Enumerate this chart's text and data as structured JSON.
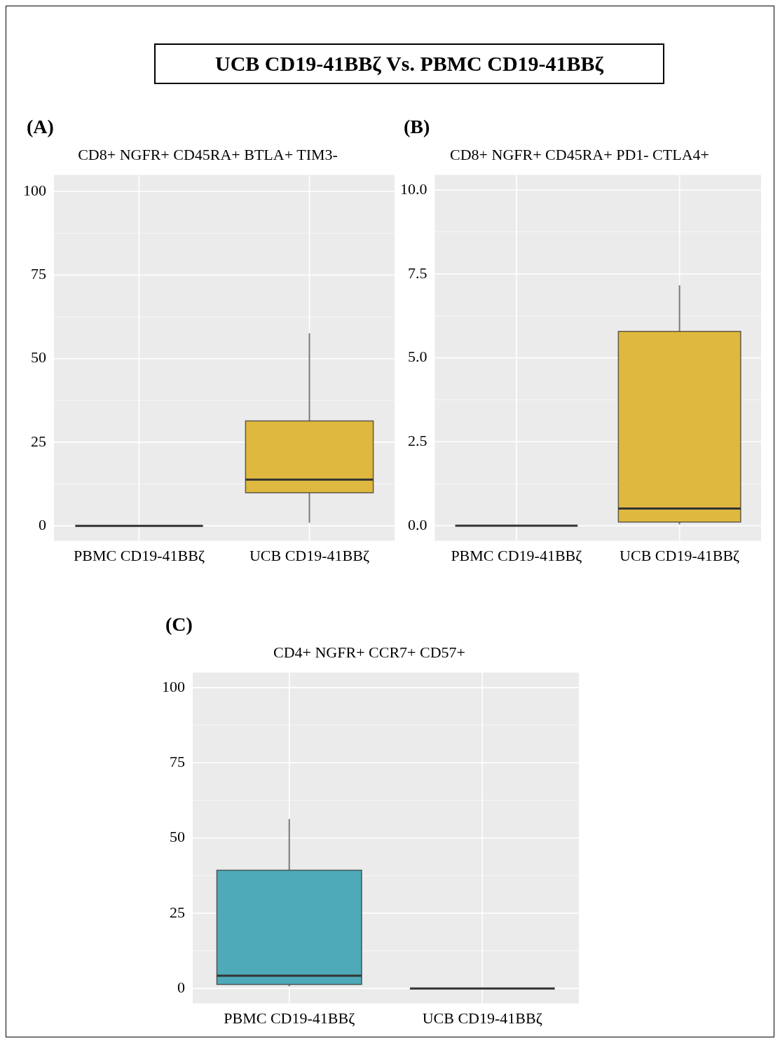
{
  "chart_data": [
    {
      "type": "other",
      "title": "UCB CD19-41BBζ Vs. PBMC CD19-41BBζ"
    },
    {
      "type": "box",
      "title": "CD8+ NGFR+ CD45RA+ BTLA+ TIM3-",
      "annotations": [
        "(A)"
      ],
      "categories": [
        "PBMC CD19-41BBζ",
        "UCB CD19-41BBζ"
      ],
      "colors": [
        "#333333",
        "#dfb83f"
      ],
      "boxes": [
        {
          "low": 0,
          "q1": 0,
          "median": 0,
          "q3": 0,
          "high": 0
        },
        {
          "low": 0.9,
          "q1": 9.9,
          "median": 13.8,
          "q3": 31.4,
          "high": 57.6
        }
      ],
      "ylim": [
        -4.5,
        105
      ],
      "yticks": [
        0,
        25,
        50,
        75,
        100
      ],
      "grid": true
    },
    {
      "type": "box",
      "title": "CD8+ NGFR+ CD45RA+ PD1- CTLA4+",
      "annotations": [
        "(B)"
      ],
      "categories": [
        "PBMC CD19-41BBζ",
        "UCB CD19-41BBζ"
      ],
      "colors": [
        "#333333",
        "#dfb83f"
      ],
      "boxes": [
        {
          "low": 0,
          "q1": 0,
          "median": 0,
          "q3": 0,
          "high": 0
        },
        {
          "low": 0.04,
          "q1": 0.11,
          "median": 0.51,
          "q3": 5.79,
          "high": 7.16
        }
      ],
      "ylim": [
        -0.45,
        10.45
      ],
      "yticks": [
        {
          "value": 0,
          "label": "0.0"
        },
        {
          "value": 2.5,
          "label": "2.5"
        },
        {
          "value": 5,
          "label": "5.0"
        },
        {
          "value": 7.5,
          "label": "7.5"
        },
        {
          "value": 10,
          "label": "10.0"
        }
      ],
      "grid": true
    },
    {
      "type": "box",
      "title": "CD4+ NGFR+ CCR7+ CD57+",
      "annotations": [
        "(C)"
      ],
      "categories": [
        "PBMC CD19-41BBζ",
        "UCB CD19-41BBζ"
      ],
      "colors": [
        "#4eaab9",
        "#333333"
      ],
      "boxes": [
        {
          "low": 0.7,
          "q1": 1.3,
          "median": 4.2,
          "q3": 39.3,
          "high": 56.3
        },
        {
          "low": 0,
          "q1": 0,
          "median": 0,
          "q3": 0,
          "high": 0
        }
      ],
      "ylim": [
        -5,
        105
      ],
      "yticks": [
        0,
        25,
        50,
        75,
        100
      ],
      "grid": true
    }
  ]
}
